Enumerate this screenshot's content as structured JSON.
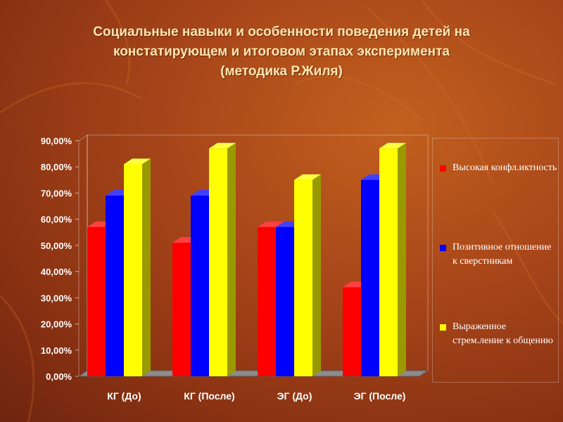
{
  "title": {
    "line1": "Социальные навыки и особенности поведения детей на",
    "line2": "констатирующем и итоговом этапах эксперимента",
    "line3": "(методика Р.Жиля)"
  },
  "colors": {
    "series_red": "#ff0000",
    "series_blue": "#0000ff",
    "series_yellow": "#ffff00",
    "background": "#a8461a",
    "floor": "#8c8c8c"
  },
  "chart_data": {
    "type": "bar",
    "categories": [
      "КГ (До)",
      "КГ (После)",
      "ЭГ (До)",
      "ЭГ (После)"
    ],
    "series": [
      {
        "name": "Высокая конфликтность",
        "color": "#ff0000",
        "values": [
          57,
          51,
          57,
          34
        ]
      },
      {
        "name": "Позитивное отношение к сверстникам",
        "color": "#0000ff",
        "values": [
          69,
          69,
          57,
          75
        ]
      },
      {
        "name": "Выраженное стремление к общению",
        "color": "#ffff00",
        "values": [
          81,
          87,
          75,
          87
        ]
      }
    ],
    "yticks": [
      "0,00%",
      "10,00%",
      "20,00%",
      "30,00%",
      "40,00%",
      "50,00%",
      "60,00%",
      "70,00%",
      "80,00%",
      "90,00%"
    ],
    "ylim": [
      0,
      90
    ],
    "grid": false,
    "legend_position": "right",
    "title": "Социальные навыки и особенности поведения детей на констатирующем и итоговом этапах эксперимента (методика Р.Жиля)",
    "xlabel": "",
    "ylabel": ""
  },
  "legend": {
    "items": [
      {
        "label": "Высокая конфл.иктность"
      },
      {
        "label": "Позитивное отношение к сверстникам"
      },
      {
        "label": "Выраженное стрем.ление к общению"
      }
    ]
  }
}
